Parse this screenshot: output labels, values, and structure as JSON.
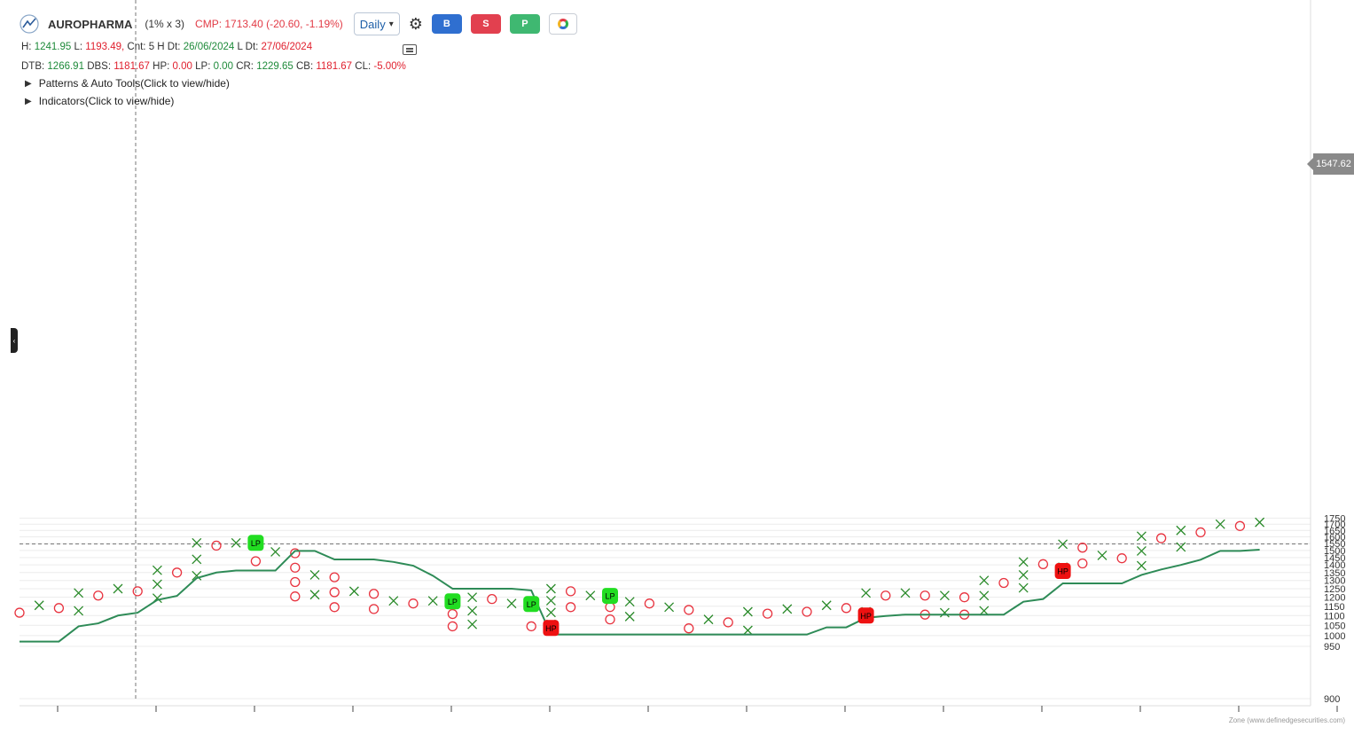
{
  "header": {
    "symbol": "AUROPHARMA",
    "box_setting": "(1% x 3)",
    "cmp_text": "CMP: 1713.40 (-20.60, -1.19%)",
    "timeframe": "Daily",
    "buttons": [
      "B",
      "S",
      "P"
    ]
  },
  "info_line1": {
    "h_label": "H:",
    "h": "1241.95",
    "l_label": "L:",
    "l": "1193.49,",
    "cnt_label": "Cnt: 5",
    "hdt_label": "H Dt:",
    "hdt": "26/06/2024",
    "ldt_label": "L Dt:",
    "ldt": "27/06/2024"
  },
  "info_line2": {
    "dtb_label": "DTB:",
    "dtb": "1266.91",
    "dbs_label": "DBS:",
    "dbs": "1181.67",
    "hp_label": "HP:",
    "hp": "0.00",
    "lp_label": "LP:",
    "lp": "0.00",
    "cr_label": "CR:",
    "cr": "1229.65",
    "cb_label": "CB:",
    "cb": "1181.67",
    "cl_label": "CL:",
    "cl": "-5.00%"
  },
  "toggles": {
    "patterns": "Patterns & Auto Tools(Click to view/hide)",
    "indicators": "Indicators(Click to view/hide)"
  },
  "crosshair_price": "1547.62",
  "credit": "Zone (www.definedgesecurities.com)",
  "colors": {
    "x": "#2a8a2a",
    "o": "#e8333f",
    "line": "#2e8b57",
    "lp": "#22dd22",
    "hp": "#ee1111"
  },
  "chart_data": {
    "type": "point-and-figure",
    "ylim": [
      900,
      1760
    ],
    "y_ticks": [
      900,
      950,
      1000,
      1050,
      1100,
      1150,
      1200,
      1250,
      1300,
      1350,
      1400,
      1450,
      1500,
      1550,
      1600,
      1650,
      1700,
      1750
    ],
    "columns": [
      {
        "type": "O",
        "high": 1115,
        "low": 1070
      },
      {
        "type": "X",
        "high": 1155,
        "low": 1080
      },
      {
        "type": "O",
        "high": 1140,
        "low": 1110
      },
      {
        "type": "X",
        "high": 1225,
        "low": 1125
      },
      {
        "type": "O",
        "high": 1210,
        "low": 1180
      },
      {
        "type": "X",
        "high": 1250,
        "low": 1195
      },
      {
        "type": "O",
        "high": 1235,
        "low": 1180
      },
      {
        "type": "X",
        "high": 1365,
        "low": 1195
      },
      {
        "type": "O",
        "high": 1350,
        "low": 1320
      },
      {
        "type": "X",
        "high": 1555,
        "low": 1330
      },
      {
        "type": "O",
        "high": 1535,
        "low": 1495
      },
      {
        "type": "X",
        "high": 1555,
        "low": 1510
      },
      {
        "type": "O",
        "high": 1540,
        "low": 1425
      },
      {
        "type": "X",
        "high": 1490,
        "low": 1440
      },
      {
        "type": "O",
        "high": 1480,
        "low": 1205
      },
      {
        "type": "X",
        "high": 1335,
        "low": 1215
      },
      {
        "type": "O",
        "high": 1320,
        "low": 1145
      },
      {
        "type": "X",
        "high": 1235,
        "low": 1160
      },
      {
        "type": "O",
        "high": 1220,
        "low": 1135
      },
      {
        "type": "X",
        "high": 1180,
        "low": 1145
      },
      {
        "type": "O",
        "high": 1165,
        "low": 1125
      },
      {
        "type": "X",
        "high": 1180,
        "low": 1135
      },
      {
        "type": "O",
        "high": 1175,
        "low": 1045
      },
      {
        "type": "X",
        "high": 1200,
        "low": 1055
      },
      {
        "type": "O",
        "high": 1190,
        "low": 1125
      },
      {
        "type": "X",
        "high": 1165,
        "low": 1135
      },
      {
        "type": "O",
        "high": 1165,
        "low": 1045
      },
      {
        "type": "X",
        "high": 1250,
        "low": 1055
      },
      {
        "type": "O",
        "high": 1235,
        "low": 1145
      },
      {
        "type": "X",
        "high": 1210,
        "low": 1150
      },
      {
        "type": "O",
        "high": 1215,
        "low": 1080
      },
      {
        "type": "X",
        "high": 1175,
        "low": 1095
      },
      {
        "type": "O",
        "high": 1165,
        "low": 1095
      },
      {
        "type": "X",
        "high": 1145,
        "low": 1095
      },
      {
        "type": "O",
        "high": 1130,
        "low": 1035
      },
      {
        "type": "X",
        "high": 1080,
        "low": 1045
      },
      {
        "type": "O",
        "high": 1065,
        "low": 1015
      },
      {
        "type": "X",
        "high": 1120,
        "low": 1025
      },
      {
        "type": "O",
        "high": 1110,
        "low": 1065
      },
      {
        "type": "X",
        "high": 1135,
        "low": 1075
      },
      {
        "type": "O",
        "high": 1120,
        "low": 1080
      },
      {
        "type": "X",
        "high": 1155,
        "low": 1095
      },
      {
        "type": "O",
        "high": 1140,
        "low": 1105
      },
      {
        "type": "X",
        "high": 1225,
        "low": 1120
      },
      {
        "type": "O",
        "high": 1210,
        "low": 1155
      },
      {
        "type": "X",
        "high": 1225,
        "low": 1170
      },
      {
        "type": "O",
        "high": 1210,
        "low": 1105
      },
      {
        "type": "X",
        "high": 1210,
        "low": 1115
      },
      {
        "type": "O",
        "high": 1200,
        "low": 1105
      },
      {
        "type": "X",
        "high": 1300,
        "low": 1125
      },
      {
        "type": "O",
        "high": 1285,
        "low": 1240
      },
      {
        "type": "X",
        "high": 1420,
        "low": 1255
      },
      {
        "type": "O",
        "high": 1405,
        "low": 1370
      },
      {
        "type": "X",
        "high": 1545,
        "low": 1385
      },
      {
        "type": "O",
        "high": 1520,
        "low": 1410
      },
      {
        "type": "X",
        "high": 1465,
        "low": 1425
      },
      {
        "type": "O",
        "high": 1445,
        "low": 1385
      },
      {
        "type": "X",
        "high": 1605,
        "low": 1395
      },
      {
        "type": "O",
        "high": 1590,
        "low": 1510
      },
      {
        "type": "X",
        "high": 1650,
        "low": 1525
      },
      {
        "type": "O",
        "high": 1635,
        "low": 1595
      },
      {
        "type": "X",
        "high": 1700,
        "low": 1610
      },
      {
        "type": "O",
        "high": 1685,
        "low": 1625
      },
      {
        "type": "X",
        "high": 1715,
        "low": 1640
      }
    ],
    "stop_line": [
      [
        0,
        972
      ],
      [
        2,
        972
      ],
      [
        3,
        1045
      ],
      [
        4,
        1060
      ],
      [
        5,
        1100
      ],
      [
        6,
        1115
      ],
      [
        7,
        1185
      ],
      [
        8,
        1208
      ],
      [
        9,
        1315
      ],
      [
        10,
        1350
      ],
      [
        11,
        1363
      ],
      [
        13,
        1363
      ],
      [
        14,
        1497
      ],
      [
        15,
        1497
      ],
      [
        16,
        1437
      ],
      [
        18,
        1437
      ],
      [
        19,
        1420
      ],
      [
        20,
        1395
      ],
      [
        21,
        1330
      ],
      [
        22,
        1250
      ],
      [
        25,
        1250
      ],
      [
        26,
        1240
      ],
      [
        27,
        1005
      ],
      [
        40,
        1005
      ],
      [
        41,
        1040
      ],
      [
        42,
        1040
      ],
      [
        43,
        1088
      ],
      [
        44,
        1098
      ],
      [
        45,
        1105
      ],
      [
        50,
        1105
      ],
      [
        51,
        1175
      ],
      [
        52,
        1190
      ],
      [
        53,
        1282
      ],
      [
        56,
        1282
      ],
      [
        57,
        1335
      ],
      [
        58,
        1370
      ],
      [
        59,
        1400
      ],
      [
        60,
        1435
      ],
      [
        61,
        1497
      ],
      [
        62,
        1497
      ],
      [
        63,
        1505
      ]
    ],
    "markers": [
      {
        "col": 12,
        "price": 1555,
        "label": "LP",
        "kind": "lp"
      },
      {
        "col": 22,
        "price": 1177,
        "label": "LP",
        "kind": "lp"
      },
      {
        "col": 26,
        "price": 1162,
        "label": "LP",
        "kind": "lp"
      },
      {
        "col": 30,
        "price": 1208,
        "label": "LP",
        "kind": "lp"
      },
      {
        "col": 27,
        "price": 1037,
        "label": "HP",
        "kind": "hp"
      },
      {
        "col": 43,
        "price": 1100,
        "label": "HP",
        "kind": "hp"
      },
      {
        "col": 53,
        "price": 1360,
        "label": "HP",
        "kind": "hp"
      }
    ]
  }
}
